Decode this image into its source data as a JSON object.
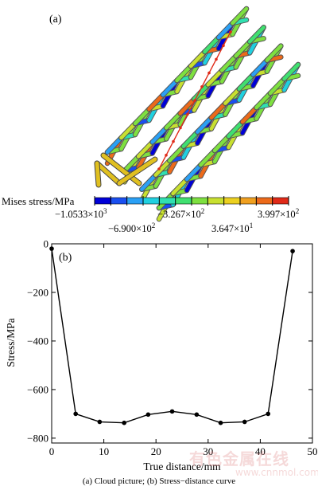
{
  "panel_a": {
    "label": "(a)",
    "legend_title": "Mises stress/MPa",
    "legend_colors": [
      "#0000d8",
      "#1a4ff0",
      "#2aa0f5",
      "#20d0e0",
      "#30e0b0",
      "#40e070",
      "#7ee040",
      "#c8e030",
      "#ecd020",
      "#f0a020",
      "#ec6a1a",
      "#e02a18"
    ],
    "tick_labels_row1": [
      {
        "mantissa": "−1.0533×10",
        "exp": "3"
      },
      {
        "mantissa": "−3.267×10",
        "exp": "2"
      },
      {
        "mantissa": "3.997×10",
        "exp": "2"
      }
    ],
    "tick_labels_row2": [
      {
        "mantissa": "−6.900×10",
        "exp": "2"
      },
      {
        "mantissa": "3.647×10",
        "exp": "1"
      }
    ]
  },
  "chart_data": {
    "type": "line",
    "panel_label": "(b)",
    "xlabel": "True distance/mm",
    "ylabel": "Stress/MPa",
    "xlim": [
      0,
      50
    ],
    "ylim": [
      -820,
      0
    ],
    "xticks": [
      0,
      10,
      20,
      30,
      40,
      50
    ],
    "yticks": [
      0,
      -200,
      -400,
      -600,
      -800
    ],
    "ytick_labels": [
      "0",
      "−200",
      "−400",
      "−600",
      "−800"
    ],
    "grid": false,
    "legend": "none",
    "series": [
      {
        "x": [
          0,
          4.6,
          9.2,
          13.9,
          18.5,
          23.1,
          27.8,
          32.4,
          37.0,
          41.5,
          46.2
        ],
        "y": [
          -20,
          -700,
          -733,
          -737,
          -703,
          -690,
          -703,
          -737,
          -733,
          -700,
          -30
        ],
        "color": "#000000"
      }
    ]
  },
  "caption": "(a) Cloud picture; (b) Stress−distance curve",
  "watermark": "有色金属在线",
  "watermark_url": "www.cnnmol.com"
}
